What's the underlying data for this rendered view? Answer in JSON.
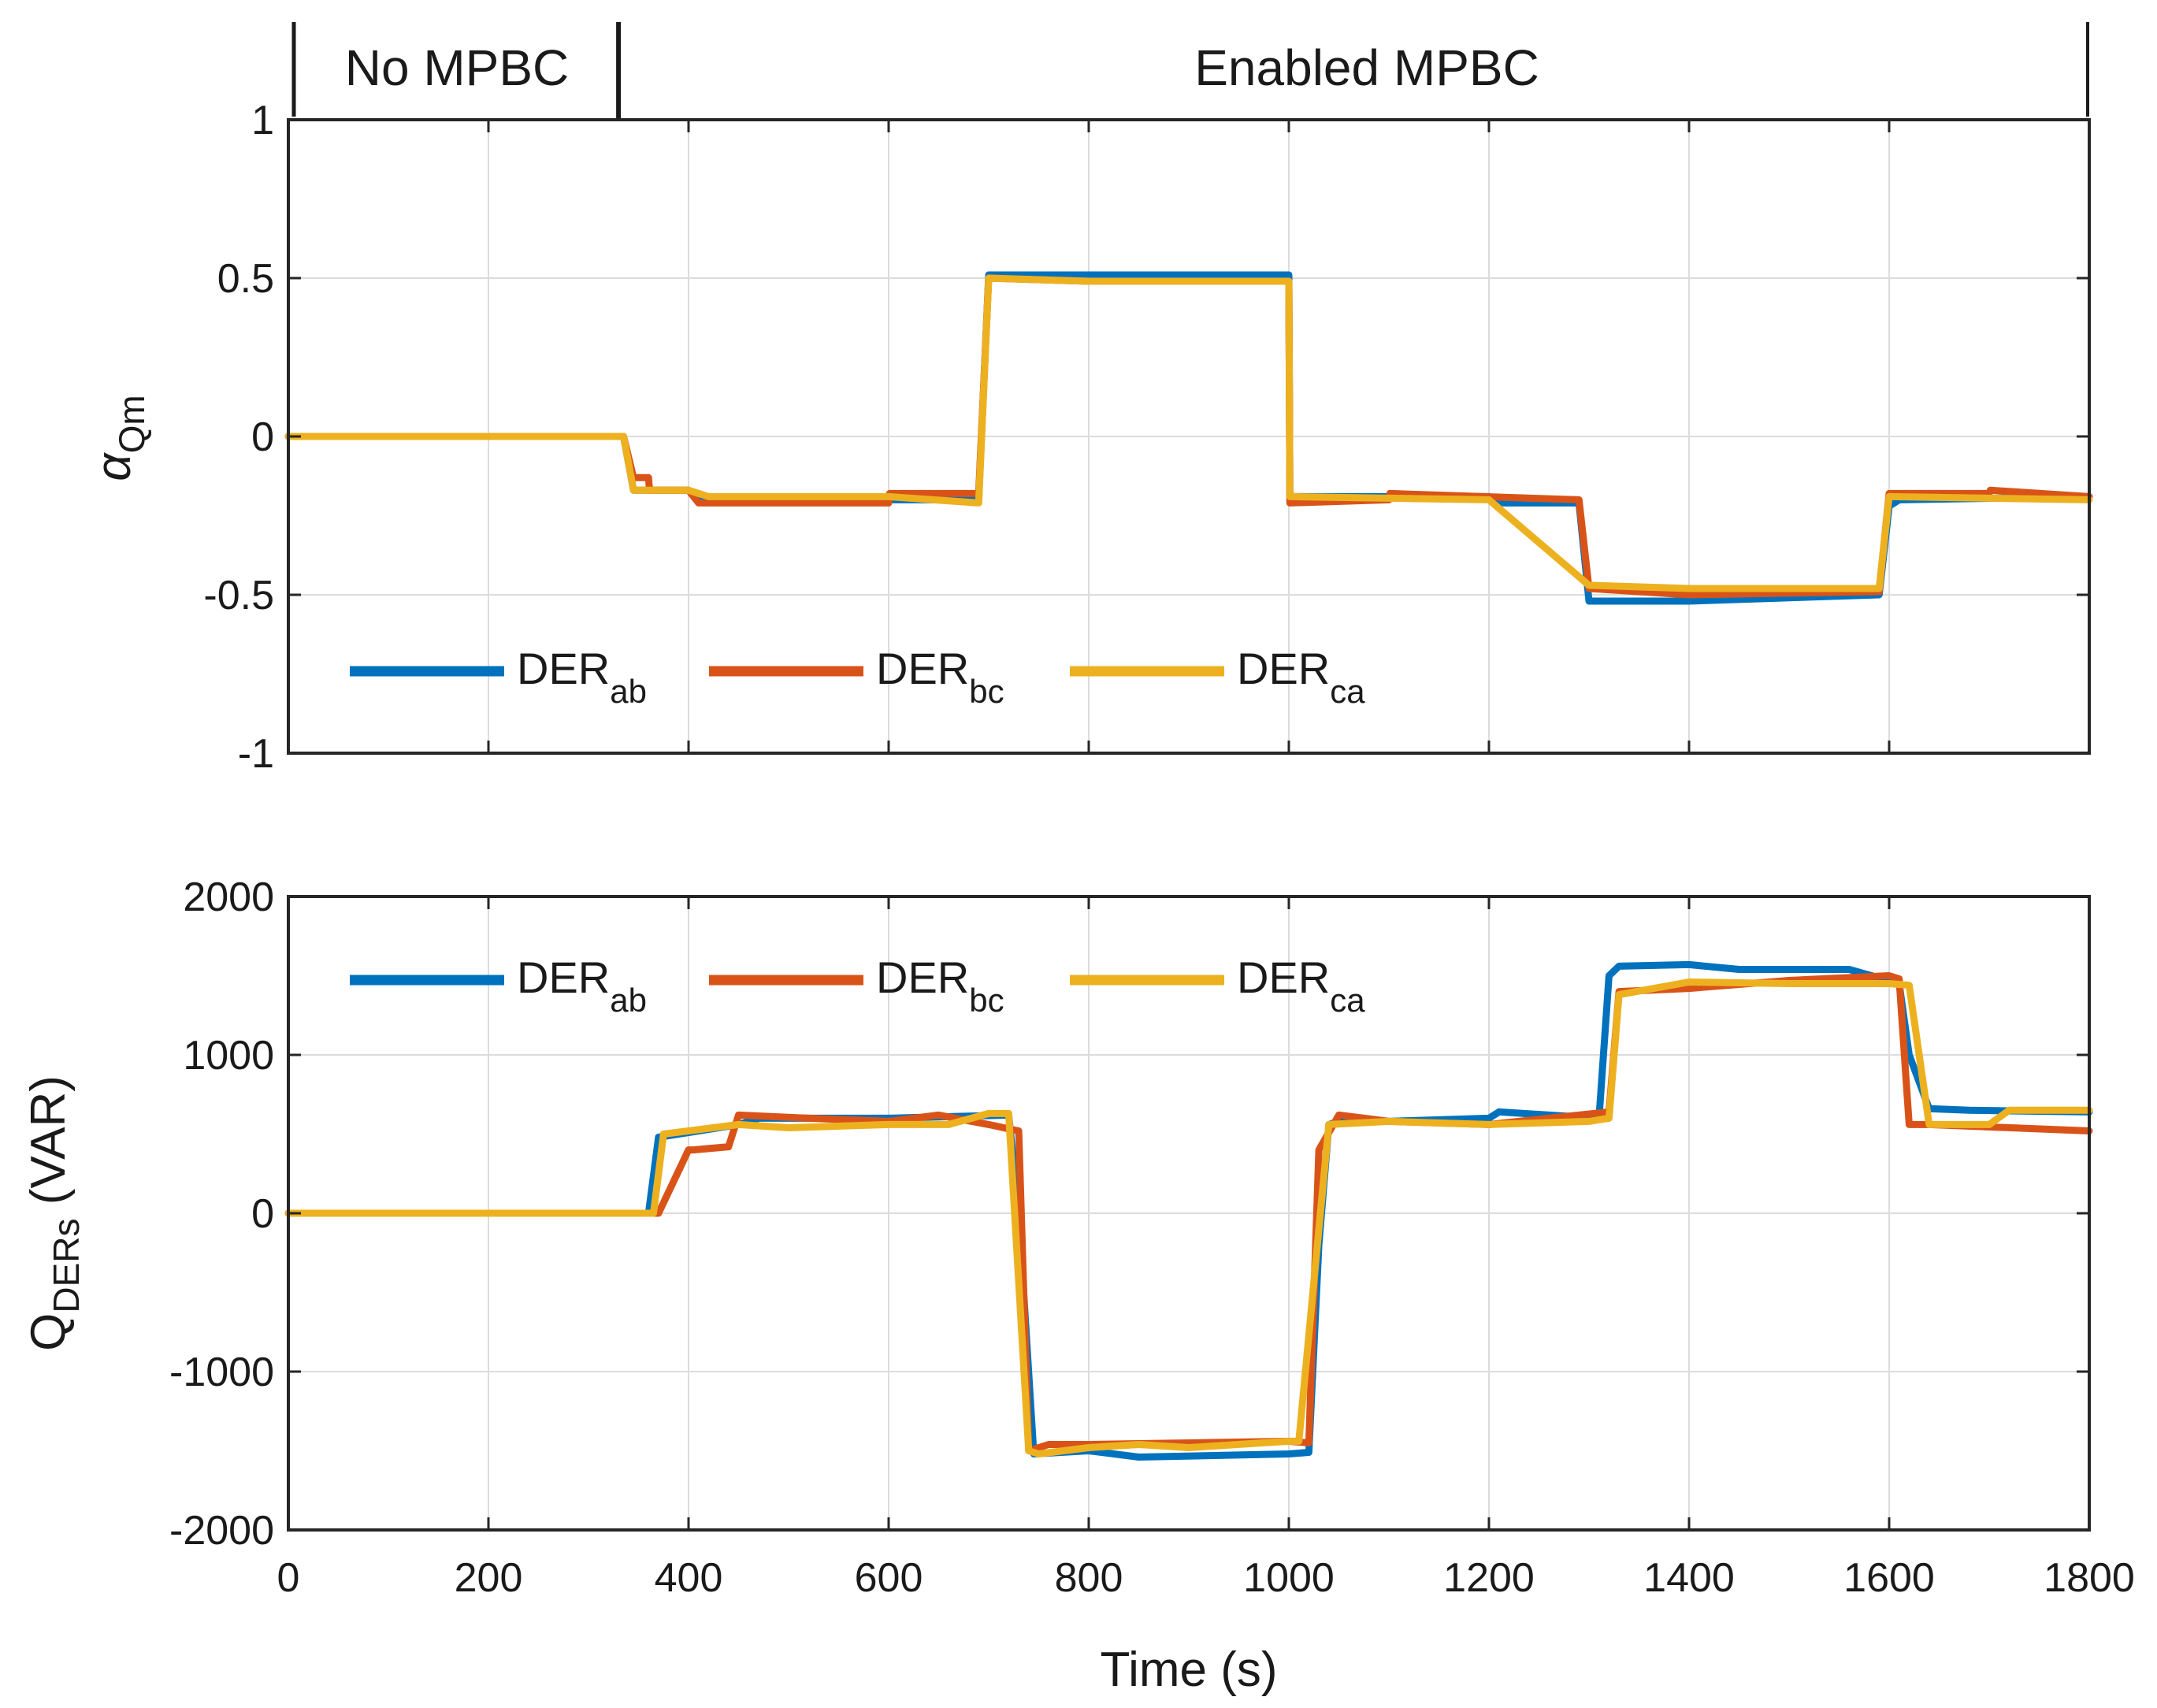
{
  "banner": {
    "left_label": "No MPBC",
    "right_label": "Enabled MPBC",
    "boundary_time": 330
  },
  "series_colors": {
    "DER_ab": "#0072BD",
    "DER_bc": "#D95319",
    "DER_ca": "#EDB120"
  },
  "chart_data": [
    {
      "type": "line",
      "id": "alpha",
      "ylabel": {
        "base": "α",
        "sub": "Qm"
      },
      "xlim": [
        0,
        1800
      ],
      "ylim": [
        -1,
        1
      ],
      "yticks": [
        -1,
        -0.5,
        0,
        0.5,
        1
      ],
      "ytick_labels": [
        "-1",
        "-0.5",
        "0",
        "0.5",
        "1"
      ],
      "xticks": [
        0,
        200,
        400,
        600,
        800,
        1000,
        1200,
        1400,
        1600,
        1800
      ],
      "grid": true,
      "legend": {
        "placement": "lower-left",
        "entries": [
          {
            "base": "DER",
            "sub": "ab",
            "key": "DER_ab"
          },
          {
            "base": "DER",
            "sub": "bc",
            "key": "DER_bc"
          },
          {
            "base": "DER",
            "sub": "ca",
            "key": "DER_ca"
          }
        ]
      },
      "series": [
        {
          "name": "DER_ab",
          "x": [
            0,
            335,
            345,
            400,
            420,
            600,
            690,
            700,
            800,
            1000,
            1001,
            1200,
            1210,
            1250,
            1290,
            1300,
            1400,
            1590,
            1600,
            1610,
            1800
          ],
          "y": [
            0,
            0,
            -0.17,
            -0.17,
            -0.2,
            -0.2,
            -0.2,
            0.51,
            0.51,
            0.51,
            -0.19,
            -0.19,
            -0.21,
            -0.21,
            -0.21,
            -0.52,
            -0.52,
            -0.5,
            -0.22,
            -0.2,
            -0.19
          ]
        },
        {
          "name": "DER_bc",
          "x": [
            0,
            335,
            345,
            360,
            361,
            400,
            410,
            600,
            601,
            690,
            700,
            800,
            1000,
            1001,
            1100,
            1101,
            1290,
            1300,
            1400,
            1590,
            1600,
            1700,
            1701,
            1800
          ],
          "y": [
            0,
            0,
            -0.13,
            -0.13,
            -0.17,
            -0.17,
            -0.21,
            -0.21,
            -0.18,
            -0.18,
            0.5,
            0.49,
            0.49,
            -0.21,
            -0.2,
            -0.18,
            -0.2,
            -0.48,
            -0.5,
            -0.49,
            -0.18,
            -0.18,
            -0.17,
            -0.19
          ]
        },
        {
          "name": "DER_ca",
          "x": [
            0,
            330,
            335,
            345,
            400,
            420,
            600,
            690,
            700,
            800,
            990,
            1000,
            1001,
            1200,
            1300,
            1400,
            1590,
            1600,
            1800
          ],
          "y": [
            0,
            0,
            0,
            -0.17,
            -0.17,
            -0.19,
            -0.19,
            -0.21,
            0.5,
            0.49,
            0.49,
            0.49,
            -0.19,
            -0.2,
            -0.47,
            -0.48,
            -0.48,
            -0.19,
            -0.2
          ]
        }
      ]
    },
    {
      "type": "line",
      "id": "qders",
      "ylabel": {
        "base": "Q",
        "sub": "DERs",
        "suffix": " (VAR)"
      },
      "xlabel": "Time (s)",
      "xlim": [
        0,
        1800
      ],
      "ylim": [
        -2000,
        2000
      ],
      "yticks": [
        -2000,
        -1000,
        0,
        1000,
        2000
      ],
      "ytick_labels": [
        "-2000",
        "-1000",
        "0",
        "1000",
        "2000"
      ],
      "xticks": [
        0,
        200,
        400,
        600,
        800,
        1000,
        1200,
        1400,
        1600,
        1800
      ],
      "xtick_labels": [
        "0",
        "200",
        "400",
        "600",
        "800",
        "1000",
        "1200",
        "1400",
        "1600",
        "1800"
      ],
      "grid": true,
      "legend": {
        "placement": "upper-left",
        "entries": [
          {
            "base": "DER",
            "sub": "ab",
            "key": "DER_ab"
          },
          {
            "base": "DER",
            "sub": "bc",
            "key": "DER_bc"
          },
          {
            "base": "DER",
            "sub": "ca",
            "key": "DER_ca"
          }
        ]
      },
      "series": [
        {
          "name": "DER_ab",
          "x": [
            0,
            360,
            370,
            410,
            450,
            470,
            600,
            720,
            730,
            745,
            800,
            850,
            1000,
            1020,
            1030,
            1040,
            1060,
            1100,
            1200,
            1210,
            1260,
            1310,
            1320,
            1330,
            1400,
            1450,
            1560,
            1610,
            1620,
            1640,
            1680,
            1800
          ],
          "y": [
            0,
            0,
            480,
            520,
            560,
            600,
            600,
            620,
            0,
            -1520,
            -1500,
            -1540,
            -1520,
            -1510,
            -200,
            560,
            600,
            580,
            600,
            640,
            620,
            600,
            1500,
            1560,
            1570,
            1540,
            1540,
            1450,
            1000,
            660,
            650,
            640
          ]
        },
        {
          "name": "DER_bc",
          "x": [
            0,
            360,
            370,
            400,
            405,
            440,
            450,
            520,
            600,
            650,
            700,
            730,
            740,
            760,
            800,
            1000,
            1020,
            1030,
            1050,
            1100,
            1200,
            1260,
            1320,
            1330,
            1400,
            1500,
            1600,
            1610,
            1620,
            1640,
            1800
          ],
          "y": [
            0,
            0,
            0,
            400,
            400,
            420,
            620,
            600,
            580,
            620,
            560,
            520,
            -1500,
            -1460,
            -1460,
            -1440,
            -1450,
            400,
            620,
            580,
            560,
            600,
            640,
            1400,
            1420,
            1470,
            1500,
            1480,
            560,
            560,
            520
          ]
        },
        {
          "name": "DER_ca",
          "x": [
            0,
            360,
            365,
            375,
            450,
            500,
            600,
            660,
            700,
            720,
            740,
            750,
            800,
            850,
            900,
            1000,
            1010,
            1030,
            1040,
            1100,
            1200,
            1300,
            1320,
            1330,
            1400,
            1500,
            1600,
            1620,
            1640,
            1700,
            1720,
            1800
          ],
          "y": [
            0,
            0,
            0,
            500,
            560,
            540,
            560,
            560,
            630,
            630,
            -1500,
            -1520,
            -1480,
            -1460,
            -1480,
            -1440,
            -1440,
            -100,
            560,
            580,
            560,
            580,
            600,
            1380,
            1460,
            1450,
            1450,
            1440,
            560,
            560,
            650,
            650
          ]
        }
      ]
    }
  ]
}
